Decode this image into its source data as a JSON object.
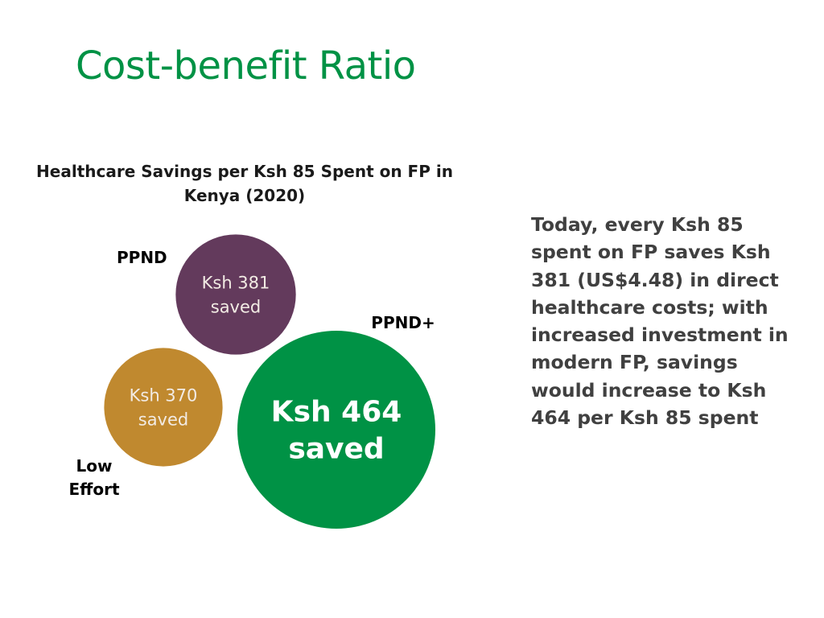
{
  "slide": {
    "title": "Cost-benefit Ratio",
    "body_text": "Today, every Ksh 85 spent on FP saves Ksh 381 (US$4.48) in direct healthcare costs; with increased investment in modern FP, savings would increase to Ksh 464 per Ksh 85 spent"
  },
  "chart_data": {
    "type": "bubble",
    "title": "Healthcare Savings per Ksh 85 Spent on FP in Kenya (2020)",
    "series": [
      {
        "name": "PPND",
        "value": 381,
        "label": [
          "Ksh 381",
          "saved"
        ],
        "color": "#633a5c"
      },
      {
        "name": "Low Effort",
        "value": 370,
        "label": [
          "Ksh 370",
          "saved"
        ],
        "color": "#c0892f"
      },
      {
        "name": "PPND+",
        "value": 464,
        "label": [
          "Ksh 464",
          "saved"
        ],
        "color": "#009245"
      }
    ]
  }
}
